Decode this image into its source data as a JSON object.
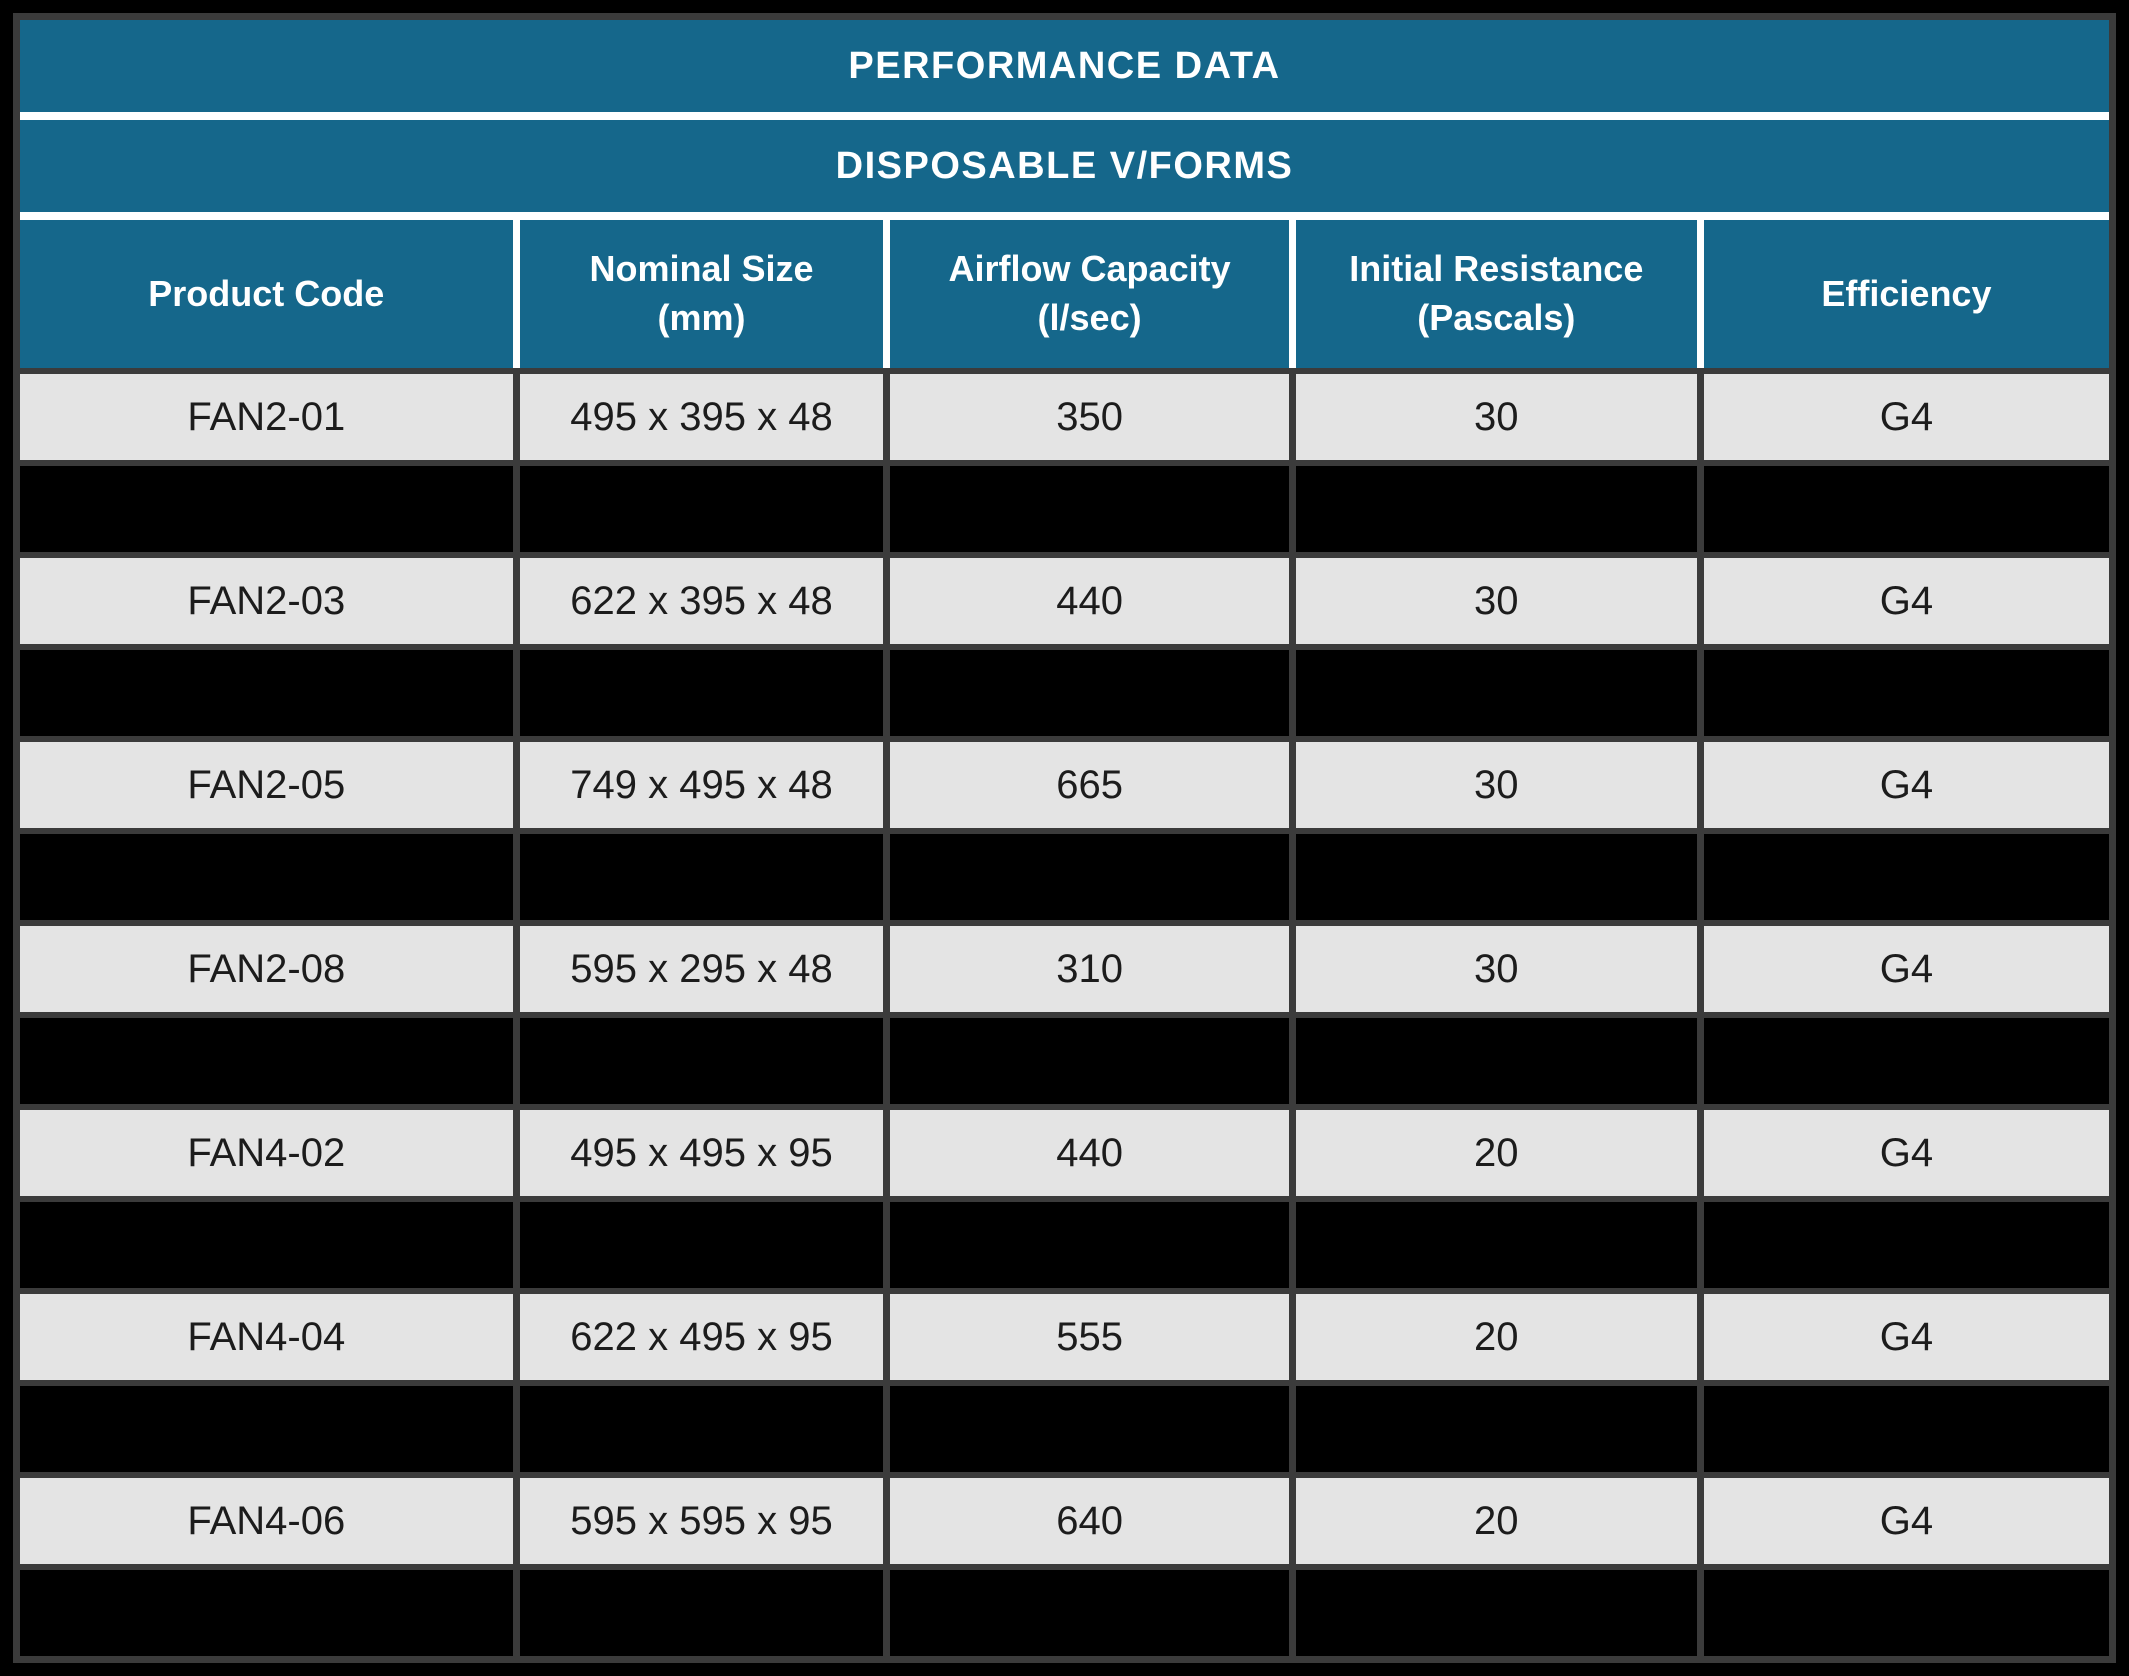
{
  "chart_data": {
    "type": "table",
    "title": "PERFORMANCE DATA",
    "subtitle": "DISPOSABLE V/FORMS",
    "columns": [
      {
        "line1": "Product Code",
        "line2": ""
      },
      {
        "line1": "Nominal Size",
        "line2": "(mm)"
      },
      {
        "line1": "Airflow Capacity",
        "line2": "(l/sec)"
      },
      {
        "line1": "Initial Resistance",
        "line2": "(Pascals)"
      },
      {
        "line1": "Efficiency",
        "line2": ""
      }
    ],
    "rows": [
      {
        "redacted": false,
        "cells": [
          "FAN2-01",
          "495 x 395 x 48",
          "350",
          "30",
          "G4"
        ]
      },
      {
        "redacted": true,
        "cells": [
          "",
          "",
          "",
          "",
          ""
        ]
      },
      {
        "redacted": false,
        "cells": [
          "FAN2-03",
          "622 x 395 x 48",
          "440",
          "30",
          "G4"
        ]
      },
      {
        "redacted": true,
        "cells": [
          "",
          "",
          "",
          "",
          ""
        ]
      },
      {
        "redacted": false,
        "cells": [
          "FAN2-05",
          "749 x 495 x 48",
          "665",
          "30",
          "G4"
        ]
      },
      {
        "redacted": true,
        "cells": [
          "",
          "",
          "",
          "",
          ""
        ]
      },
      {
        "redacted": false,
        "cells": [
          "FAN2-08",
          "595 x 295 x 48",
          "310",
          "30",
          "G4"
        ]
      },
      {
        "redacted": true,
        "cells": [
          "",
          "",
          "",
          "",
          ""
        ]
      },
      {
        "redacted": false,
        "cells": [
          "FAN4-02",
          "495 x 495 x 95",
          "440",
          "20",
          "G4"
        ]
      },
      {
        "redacted": true,
        "cells": [
          "",
          "",
          "",
          "",
          ""
        ]
      },
      {
        "redacted": false,
        "cells": [
          "FAN4-04",
          "622 x 495 x 95",
          "555",
          "20",
          "G4"
        ]
      },
      {
        "redacted": true,
        "cells": [
          "",
          "",
          "",
          "",
          ""
        ]
      },
      {
        "redacted": false,
        "cells": [
          "FAN4-06",
          "595 x 595 x 95",
          "640",
          "20",
          "G4"
        ]
      },
      {
        "redacted": true,
        "cells": [
          "",
          "",
          "",
          "",
          ""
        ]
      }
    ],
    "layout": {
      "column_width_ratios": [
        502,
        378,
        413,
        416,
        420
      ],
      "grid_on": true,
      "legend": "none"
    },
    "colors": {
      "header_teal": "#15678b",
      "row_grey": "#e4e4e4",
      "redacted_black": "#000000",
      "border_grey": "#3b3b3b",
      "header_text": "#ffffff",
      "cell_text": "#1c1c1c",
      "separator_white": "#ffffff",
      "page_background": "#000000"
    }
  }
}
